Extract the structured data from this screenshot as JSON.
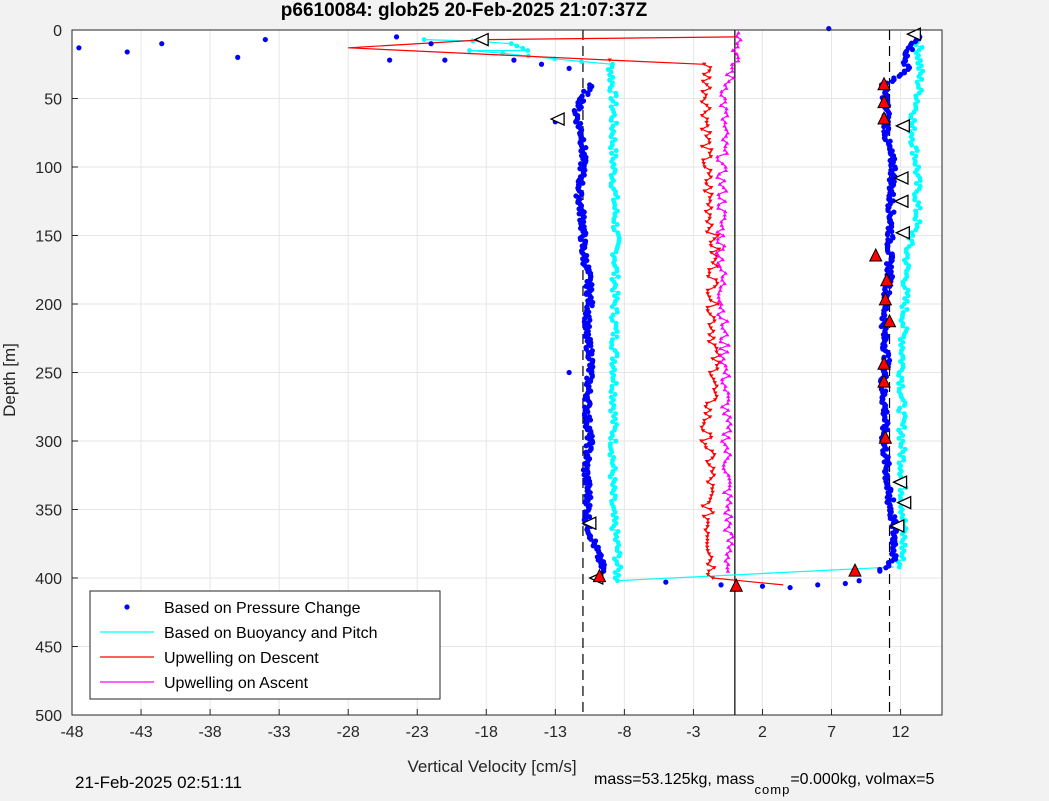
{
  "chart_data": {
    "type": "scatter",
    "title": "p6610084: glob25 20-Feb-2025 21:07:37Z",
    "xlabel": "Vertical Velocity [cm/s]",
    "ylabel": "Depth [m]",
    "xlim": [
      -48,
      15
    ],
    "ylim": [
      500,
      0
    ],
    "x_ticks": [
      -48,
      -43,
      -38,
      -33,
      -28,
      -23,
      -18,
      -13,
      -8,
      -3,
      2,
      7,
      12
    ],
    "y_ticks": [
      0,
      50,
      100,
      150,
      200,
      250,
      300,
      350,
      400,
      450,
      500
    ],
    "grid": true,
    "legend_position": "bottom-left",
    "reference_lines": {
      "dashed_x": [
        -11,
        11.2
      ],
      "solid_x": [
        0
      ]
    },
    "series": [
      {
        "name": "Based on Pressure Change",
        "color": "#0000ff",
        "marker": "dot",
        "descent": [
          [
            -10.5,
            40
          ],
          [
            -11.5,
            60
          ],
          [
            -11,
            80
          ],
          [
            -11,
            100
          ],
          [
            -11.3,
            120
          ],
          [
            -11,
            140
          ],
          [
            -11,
            160
          ],
          [
            -10.6,
            180
          ],
          [
            -10.5,
            200
          ],
          [
            -10.8,
            220
          ],
          [
            -10.4,
            240
          ],
          [
            -10.6,
            260
          ],
          [
            -10.7,
            280
          ],
          [
            -10.5,
            300
          ],
          [
            -10.8,
            320
          ],
          [
            -10.6,
            340
          ],
          [
            -10.7,
            360
          ],
          [
            -10,
            380
          ],
          [
            -9.5,
            395
          ]
        ],
        "ascent": [
          [
            13.3,
            5
          ],
          [
            12.3,
            20
          ],
          [
            12.5,
            30
          ],
          [
            10.8,
            40
          ],
          [
            11,
            60
          ],
          [
            11,
            80
          ],
          [
            11.5,
            100
          ],
          [
            11.3,
            120
          ],
          [
            11.3,
            140
          ],
          [
            11.2,
            160
          ],
          [
            11.2,
            180
          ],
          [
            10.9,
            200
          ],
          [
            10.8,
            220
          ],
          [
            11,
            240
          ],
          [
            10.7,
            260
          ],
          [
            10.9,
            280
          ],
          [
            10.8,
            300
          ],
          [
            11,
            320
          ],
          [
            11.1,
            340
          ],
          [
            11.5,
            360
          ],
          [
            11.6,
            380
          ],
          [
            11.3,
            390
          ],
          [
            10.5,
            395
          ]
        ],
        "scattered": [
          [
            -47.5,
            13
          ],
          [
            -44,
            16
          ],
          [
            -41.5,
            10
          ],
          [
            -36,
            20
          ],
          [
            -34,
            7
          ],
          [
            -24.5,
            5
          ],
          [
            -22,
            10
          ],
          [
            -25,
            22
          ],
          [
            -21,
            22
          ],
          [
            -16,
            22
          ],
          [
            -14,
            25
          ],
          [
            -12,
            28
          ],
          [
            -13,
            67
          ],
          [
            -5,
            403
          ],
          [
            -1,
            405
          ],
          [
            2,
            406
          ],
          [
            4,
            407
          ],
          [
            6,
            405
          ],
          [
            8,
            404
          ],
          [
            9,
            402
          ],
          [
            6.8,
            -1
          ],
          [
            11.5,
            343
          ],
          [
            -12,
            250
          ]
        ]
      },
      {
        "name": "Based on Buoyancy and Pitch",
        "color": "#00ffff",
        "marker": "line",
        "descent": [
          [
            -22.5,
            7
          ],
          [
            -19,
            8
          ],
          [
            -16,
            10
          ],
          [
            -15,
            15
          ],
          [
            -19,
            15
          ],
          [
            -9,
            25
          ],
          [
            -8.8,
            50
          ],
          [
            -8.8,
            100
          ],
          [
            -8.6,
            150
          ],
          [
            -8.7,
            200
          ],
          [
            -8.7,
            250
          ],
          [
            -8.8,
            300
          ],
          [
            -8.9,
            350
          ],
          [
            -8.5,
            380
          ],
          [
            -8.5,
            402
          ]
        ],
        "ascent": [
          [
            13.3,
            5
          ],
          [
            13.4,
            30
          ],
          [
            13.3,
            50
          ],
          [
            12.8,
            70
          ],
          [
            13.2,
            100
          ],
          [
            13.2,
            140
          ],
          [
            12.5,
            160
          ],
          [
            12.3,
            200
          ],
          [
            12.1,
            250
          ],
          [
            12.1,
            300
          ],
          [
            12.2,
            350
          ],
          [
            12.2,
            380
          ],
          [
            11.9,
            392
          ]
        ],
        "transition": [
          [
            -8.5,
            402
          ],
          [
            11.5,
            392
          ]
        ]
      },
      {
        "name": "Upwelling on Descent",
        "color": "#ff0000",
        "marker": "triangle-down",
        "values": [
          [
            0.1,
            5
          ],
          [
            -18,
            7
          ],
          [
            -28,
            13
          ],
          [
            -9,
            22
          ],
          [
            -2,
            25
          ],
          [
            -2,
            50
          ],
          [
            -2,
            70
          ],
          [
            -2.1,
            100
          ],
          [
            -1.8,
            130
          ],
          [
            -1.5,
            160
          ],
          [
            -1.6,
            200
          ],
          [
            -1.5,
            230
          ],
          [
            -1.4,
            255
          ],
          [
            -2.2,
            290
          ],
          [
            -1.7,
            320
          ],
          [
            -2,
            350
          ],
          [
            -1.7,
            380
          ],
          [
            -1.6,
            400
          ],
          [
            3.5,
            405
          ]
        ]
      },
      {
        "name": "Upwelling on Ascent",
        "color": "#ff00ff",
        "marker": "triangle-up",
        "values": [
          [
            0.5,
            2
          ],
          [
            0,
            20
          ],
          [
            -0.8,
            50
          ],
          [
            -0.8,
            80
          ],
          [
            -1,
            100
          ],
          [
            -0.9,
            120
          ],
          [
            -1,
            150
          ],
          [
            -0.9,
            200
          ],
          [
            -0.7,
            250
          ],
          [
            -0.6,
            300
          ],
          [
            -0.5,
            350
          ],
          [
            -0.4,
            380
          ],
          [
            -0.5,
            395
          ]
        ]
      }
    ],
    "triangle_markers": {
      "fill": "#ffffff",
      "stroke": "#000000",
      "points": [
        [
          -18.3,
          7
        ],
        [
          -10,
          400
        ],
        [
          -12.8,
          65
        ],
        [
          -10.5,
          360
        ],
        [
          13,
          3
        ],
        [
          12.2,
          70
        ],
        [
          12.1,
          108
        ],
        [
          12.1,
          125
        ],
        [
          12.2,
          148
        ],
        [
          12,
          330
        ],
        [
          12.3,
          345
        ],
        [
          11.8,
          362
        ]
      ]
    },
    "red_markers": {
      "fill": "#ff0000",
      "points": [
        [
          10.8,
          40
        ],
        [
          10.8,
          53
        ],
        [
          10.8,
          65
        ],
        [
          10.2,
          165
        ],
        [
          11,
          183
        ],
        [
          10.9,
          197
        ],
        [
          11.2,
          213
        ],
        [
          10.8,
          244
        ],
        [
          10.8,
          257
        ],
        [
          10.9,
          298
        ],
        [
          8.7,
          395
        ],
        [
          0.1,
          406
        ],
        [
          -9.8,
          399
        ]
      ]
    }
  },
  "footer": {
    "date": "21-Feb-2025 02:51:11",
    "mass_prefix": "mass=53.125kg, mass",
    "mass_sub": "comp",
    "mass_suffix": "=0.000kg, volmax=5"
  }
}
